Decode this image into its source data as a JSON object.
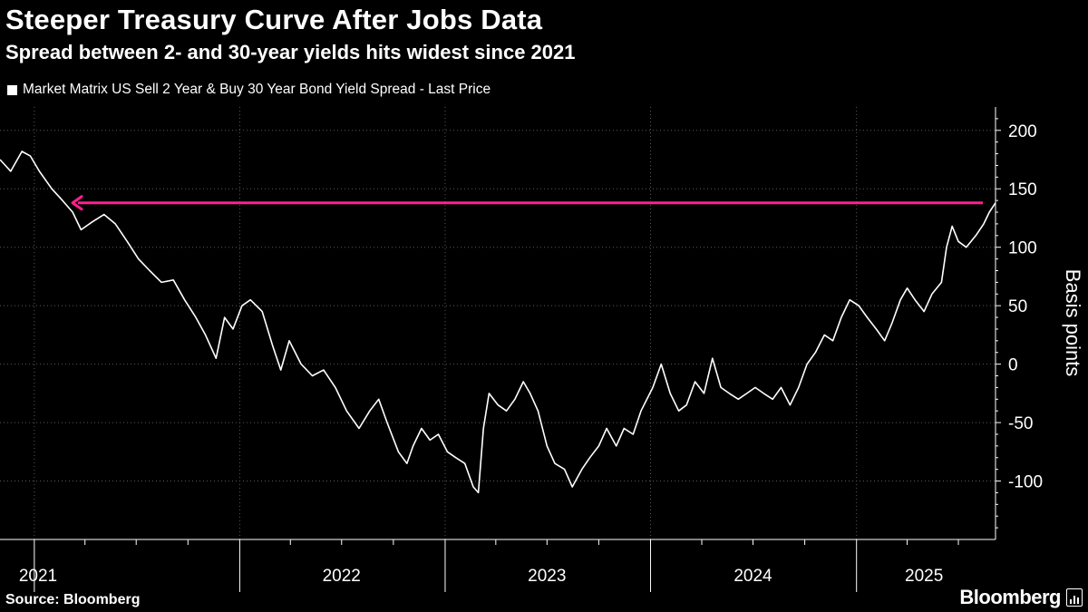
{
  "title": "Steeper Treasury Curve After Jobs Data",
  "subtitle": "Spread between 2- and 30-year yields hits widest since 2021",
  "source": "Source: Bloomberg",
  "brand": "Bloomberg",
  "colors": {
    "background": "#000000",
    "series": "#ffffff",
    "highlight": "#ff1f8e",
    "grid": "#5a5a5a"
  },
  "chart_data": {
    "type": "line",
    "legend": [
      "Market Matrix US Sell 2 Year & Buy 30 Year Bond Yield Spread - Last Price"
    ],
    "ylabel": "Basis points",
    "yticks": [
      200,
      150,
      100,
      50,
      0,
      -50,
      -100
    ],
    "ylim": [
      -150,
      220
    ],
    "xlabels": [
      "2021",
      "2022",
      "2023",
      "2024",
      "2025"
    ],
    "xlim": [
      "2020-11-01",
      "2025-09-05"
    ],
    "annotation": {
      "type": "horizontal-arrow",
      "value": 138,
      "from": "2025-09-05",
      "to": "2021-03-10"
    },
    "series": [
      {
        "color": "#ffffff",
        "points": [
          [
            "2020-11-01",
            175
          ],
          [
            "2020-11-20",
            165
          ],
          [
            "2020-12-10",
            182
          ],
          [
            "2020-12-25",
            178
          ],
          [
            "2021-01-10",
            165
          ],
          [
            "2021-02-01",
            150
          ],
          [
            "2021-02-20",
            140
          ],
          [
            "2021-03-10",
            130
          ],
          [
            "2021-03-25",
            115
          ],
          [
            "2021-04-15",
            122
          ],
          [
            "2021-05-05",
            128
          ],
          [
            "2021-05-25",
            120
          ],
          [
            "2021-06-15",
            105
          ],
          [
            "2021-07-05",
            90
          ],
          [
            "2021-07-25",
            80
          ],
          [
            "2021-08-15",
            70
          ],
          [
            "2021-09-05",
            72
          ],
          [
            "2021-09-25",
            55
          ],
          [
            "2021-10-15",
            40
          ],
          [
            "2021-11-01",
            25
          ],
          [
            "2021-11-20",
            5
          ],
          [
            "2021-12-05",
            40
          ],
          [
            "2021-12-20",
            30
          ],
          [
            "2022-01-05",
            50
          ],
          [
            "2022-01-20",
            55
          ],
          [
            "2022-02-10",
            45
          ],
          [
            "2022-03-01",
            15
          ],
          [
            "2022-03-15",
            -5
          ],
          [
            "2022-03-30",
            20
          ],
          [
            "2022-04-20",
            0
          ],
          [
            "2022-05-10",
            -10
          ],
          [
            "2022-05-30",
            -5
          ],
          [
            "2022-06-20",
            -20
          ],
          [
            "2022-07-10",
            -40
          ],
          [
            "2022-08-01",
            -55
          ],
          [
            "2022-08-20",
            -40
          ],
          [
            "2022-09-05",
            -30
          ],
          [
            "2022-09-20",
            -50
          ],
          [
            "2022-10-10",
            -75
          ],
          [
            "2022-10-25",
            -85
          ],
          [
            "2022-11-05",
            -70
          ],
          [
            "2022-11-20",
            -55
          ],
          [
            "2022-12-05",
            -65
          ],
          [
            "2022-12-20",
            -60
          ],
          [
            "2023-01-05",
            -75
          ],
          [
            "2023-01-20",
            -80
          ],
          [
            "2023-02-05",
            -85
          ],
          [
            "2023-02-20",
            -105
          ],
          [
            "2023-03-01",
            -110
          ],
          [
            "2023-03-10",
            -55
          ],
          [
            "2023-03-20",
            -25
          ],
          [
            "2023-04-05",
            -35
          ],
          [
            "2023-04-20",
            -40
          ],
          [
            "2023-05-05",
            -30
          ],
          [
            "2023-05-20",
            -15
          ],
          [
            "2023-06-01",
            -25
          ],
          [
            "2023-06-15",
            -40
          ],
          [
            "2023-07-01",
            -70
          ],
          [
            "2023-07-15",
            -85
          ],
          [
            "2023-08-01",
            -90
          ],
          [
            "2023-08-15",
            -105
          ],
          [
            "2023-09-01",
            -90
          ],
          [
            "2023-09-15",
            -80
          ],
          [
            "2023-10-01",
            -70
          ],
          [
            "2023-10-15",
            -55
          ],
          [
            "2023-11-01",
            -70
          ],
          [
            "2023-11-15",
            -55
          ],
          [
            "2023-12-01",
            -60
          ],
          [
            "2023-12-15",
            -40
          ],
          [
            "2024-01-05",
            -20
          ],
          [
            "2024-01-20",
            0
          ],
          [
            "2024-02-05",
            -25
          ],
          [
            "2024-02-20",
            -40
          ],
          [
            "2024-03-05",
            -35
          ],
          [
            "2024-03-20",
            -15
          ],
          [
            "2024-04-05",
            -25
          ],
          [
            "2024-04-20",
            5
          ],
          [
            "2024-05-05",
            -20
          ],
          [
            "2024-05-20",
            -25
          ],
          [
            "2024-06-05",
            -30
          ],
          [
            "2024-06-20",
            -25
          ],
          [
            "2024-07-05",
            -20
          ],
          [
            "2024-07-20",
            -25
          ],
          [
            "2024-08-05",
            -30
          ],
          [
            "2024-08-20",
            -20
          ],
          [
            "2024-09-05",
            -35
          ],
          [
            "2024-09-20",
            -20
          ],
          [
            "2024-10-05",
            0
          ],
          [
            "2024-10-20",
            10
          ],
          [
            "2024-11-05",
            25
          ],
          [
            "2024-11-20",
            20
          ],
          [
            "2024-12-05",
            40
          ],
          [
            "2024-12-20",
            55
          ],
          [
            "2025-01-05",
            50
          ],
          [
            "2025-01-20",
            40
          ],
          [
            "2025-02-05",
            30
          ],
          [
            "2025-02-20",
            20
          ],
          [
            "2025-03-05",
            35
          ],
          [
            "2025-03-20",
            55
          ],
          [
            "2025-04-01",
            65
          ],
          [
            "2025-04-15",
            55
          ],
          [
            "2025-05-01",
            45
          ],
          [
            "2025-05-15",
            60
          ],
          [
            "2025-06-01",
            70
          ],
          [
            "2025-06-10",
            100
          ],
          [
            "2025-06-20",
            118
          ],
          [
            "2025-07-01",
            105
          ],
          [
            "2025-07-15",
            100
          ],
          [
            "2025-08-01",
            110
          ],
          [
            "2025-08-15",
            120
          ],
          [
            "2025-08-25",
            130
          ],
          [
            "2025-09-05",
            138
          ]
        ]
      }
    ]
  }
}
